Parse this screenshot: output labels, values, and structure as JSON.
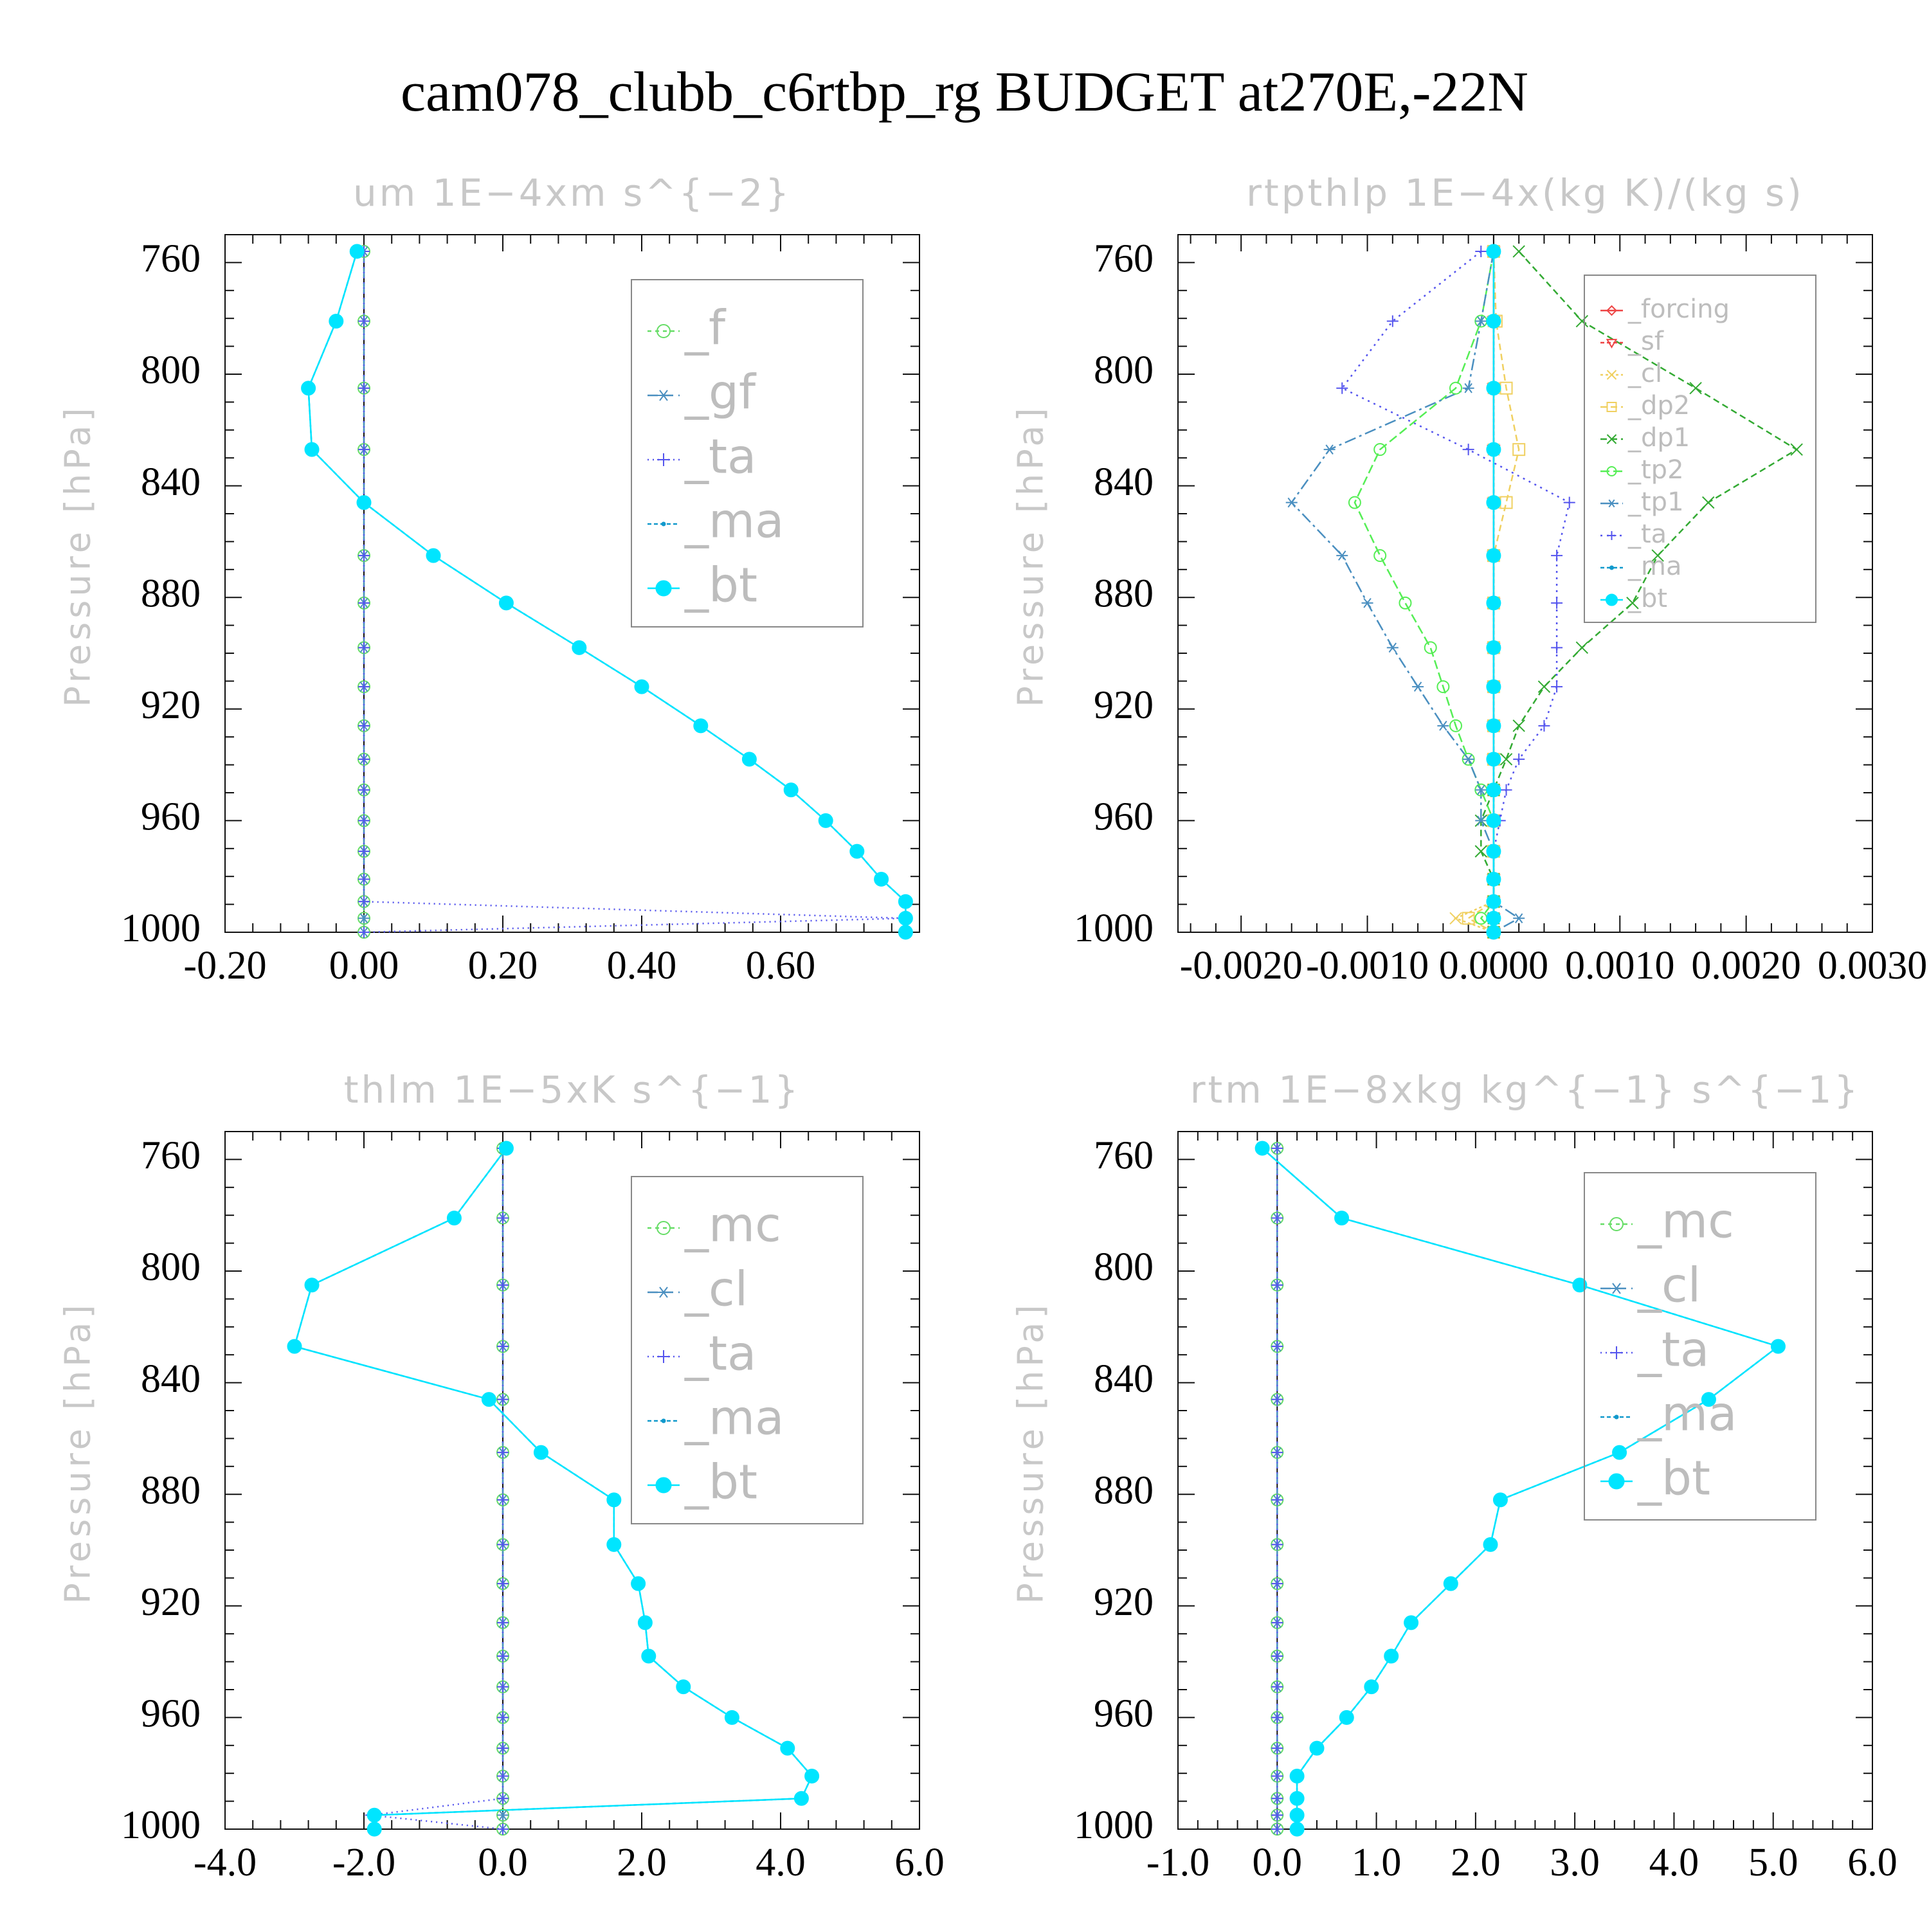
{
  "title": "cam078_clubb_c6rtbp_rg  BUDGET at270E,-22N",
  "chart_data": [
    {
      "type": "line",
      "title": "um   1E−4xm s^{−2}",
      "ylabel": "Pressure [hPa]",
      "xlim": [
        -0.2,
        0.8
      ],
      "xticks": [
        -0.2,
        0.0,
        0.2,
        0.4,
        0.6
      ],
      "xticklabels": [
        "-0.20",
        "0.00",
        "0.20",
        "0.40",
        "0.60"
      ],
      "ylim": [
        750,
        1000
      ],
      "yticks": [
        760,
        800,
        840,
        880,
        920,
        960,
        1000
      ],
      "yticklabels": [
        "760",
        "800",
        "840",
        "880",
        "920",
        "960",
        "1000"
      ],
      "legend_position": "top-right",
      "legend_font": 74,
      "pressure": [
        756,
        781,
        805,
        827,
        846,
        865,
        882,
        898,
        912,
        926,
        938,
        949,
        960,
        971,
        981,
        989,
        995,
        1000
      ],
      "series": [
        {
          "name": "_f",
          "color": "#66dd66",
          "marker": "circle",
          "dash": "6,6",
          "values": [
            0,
            0,
            0,
            0,
            0,
            0,
            0,
            0,
            0,
            0,
            0,
            0,
            0,
            0,
            0,
            0,
            0,
            0
          ]
        },
        {
          "name": "_gf",
          "color": "#4a8fc0",
          "marker": "asterisk",
          "dash": "16,8",
          "values": [
            0,
            0,
            0,
            0,
            0,
            0,
            0,
            0,
            0,
            0,
            0,
            0,
            0,
            0,
            0,
            0,
            0,
            0
          ]
        },
        {
          "name": "_ta",
          "color": "#5555ee",
          "marker": "plus",
          "dash": "2,6",
          "values": [
            0,
            0,
            0,
            0,
            0,
            0,
            0,
            0,
            0,
            0,
            0,
            0,
            0,
            0,
            0,
            0,
            0.78,
            0
          ]
        },
        {
          "name": "_ma",
          "color": "#1199cc",
          "marker": "dot",
          "dash": "6,4",
          "values": [
            -0.01,
            -0.04,
            -0.08,
            -0.075,
            0.0,
            0.1,
            0.205,
            0.31,
            0.4,
            0.485,
            0.555,
            0.615,
            0.665,
            0.71,
            0.745,
            0.78,
            0.78,
            0.78
          ]
        },
        {
          "name": "_bt",
          "color": "#00e5ff",
          "marker": "filled",
          "dash": "none",
          "values": [
            -0.01,
            -0.04,
            -0.08,
            -0.075,
            0.0,
            0.1,
            0.205,
            0.31,
            0.4,
            0.485,
            0.555,
            0.615,
            0.665,
            0.71,
            0.745,
            0.78,
            0.78,
            0.78
          ]
        }
      ]
    },
    {
      "type": "line",
      "title": "rtpthlp   1E−4x(kg K)/(kg s)",
      "ylabel": "Pressure [hPa]",
      "xlim": [
        -0.0025,
        0.003
      ],
      "xticks": [
        -0.002,
        -0.001,
        0.0,
        0.001,
        0.002,
        0.003
      ],
      "xticklabels": [
        "-0.0020",
        "-0.0010",
        "0.0000",
        "0.0010",
        "0.0020",
        "0.0030"
      ],
      "ylim": [
        750,
        1000
      ],
      "yticks": [
        760,
        800,
        840,
        880,
        920,
        960,
        1000
      ],
      "yticklabels": [
        "760",
        "800",
        "840",
        "880",
        "920",
        "960",
        "1000"
      ],
      "legend_position": "top-right",
      "legend_font": 40,
      "pressure": [
        756,
        781,
        805,
        827,
        846,
        865,
        882,
        898,
        912,
        926,
        938,
        949,
        960,
        971,
        981,
        989,
        995,
        1000
      ],
      "series": [
        {
          "name": "_forcing",
          "color": "#ee4444",
          "marker": "diamond",
          "dash": "none",
          "values": [
            0,
            0,
            0,
            0,
            0,
            0,
            0,
            0,
            0,
            0,
            0,
            0,
            0,
            0,
            0,
            0,
            0,
            0
          ]
        },
        {
          "name": "_sf",
          "color": "#ee4444",
          "marker": "triangle",
          "dash": "6,4",
          "values": [
            0,
            0,
            0,
            0,
            0,
            0,
            0,
            0,
            0,
            0,
            0,
            0,
            0,
            0,
            0,
            0,
            0,
            0
          ]
        },
        {
          "name": "_cl",
          "color": "#f0d060",
          "marker": "x",
          "dash": "4,4",
          "values": [
            0,
            0,
            0,
            0,
            0,
            0,
            0,
            0,
            0,
            0,
            0,
            0,
            0,
            0,
            0,
            0,
            -0.0003,
            0
          ]
        },
        {
          "name": "_dp2",
          "color": "#f0d060",
          "marker": "square",
          "dash": "10,6",
          "values": [
            0,
            2e-05,
            0.0001,
            0.0002,
            0.0001,
            0,
            0,
            0,
            0,
            0,
            0,
            0,
            0,
            0,
            0,
            0,
            -0.0002,
            0
          ]
        },
        {
          "name": "_dp1",
          "color": "#33aa33",
          "marker": "x",
          "dash": "10,6",
          "values": [
            0.0002,
            0.0007,
            0.0016,
            0.0024,
            0.0017,
            0.0013,
            0.0011,
            0.0007,
            0.0004,
            0.0002,
            0.0001,
            0,
            -0.0001,
            -0.0001,
            0,
            0,
            0,
            0
          ]
        },
        {
          "name": "_tp2",
          "color": "#55ee55",
          "marker": "circle",
          "dash": "14,6",
          "values": [
            0,
            -0.0001,
            -0.0003,
            -0.0009,
            -0.0011,
            -0.0009,
            -0.0007,
            -0.0005,
            -0.0004,
            -0.0003,
            -0.0002,
            -0.0001,
            0,
            0,
            0,
            0,
            -0.0001,
            0
          ]
        },
        {
          "name": "_tp1",
          "color": "#4a8fc0",
          "marker": "asterisk",
          "dash": "18,6,4,6",
          "values": [
            0,
            -0.0001,
            -0.0002,
            -0.0013,
            -0.0016,
            -0.0012,
            -0.001,
            -0.0008,
            -0.0006,
            -0.0004,
            -0.0002,
            -0.0001,
            -0.0001,
            0,
            0,
            0,
            0.0002,
            0
          ]
        },
        {
          "name": "_ta",
          "color": "#5555ee",
          "marker": "plus",
          "dash": "3,7",
          "values": [
            -0.0001,
            -0.0008,
            -0.0012,
            -0.0002,
            0.0006,
            0.0005,
            0.0005,
            0.0005,
            0.0005,
            0.0004,
            0.0002,
            0.0001,
            5e-05,
            0,
            0,
            0,
            0,
            0
          ]
        },
        {
          "name": "_ma",
          "color": "#1199cc",
          "marker": "dot",
          "dash": "6,4",
          "values": [
            0,
            0,
            0,
            0,
            0,
            0,
            0,
            0,
            0,
            0,
            0,
            0,
            0,
            0,
            0,
            0,
            0,
            0
          ]
        },
        {
          "name": "_bt",
          "color": "#00e5ff",
          "marker": "filled",
          "dash": "none",
          "values": [
            0,
            0,
            0,
            0,
            0,
            0,
            0,
            0,
            0,
            0,
            0,
            0,
            0,
            0,
            0,
            0,
            0,
            0
          ]
        }
      ]
    },
    {
      "type": "line",
      "title": "thlm   1E−5xK s^{−1}",
      "ylabel": "Pressure [hPa]",
      "xlim": [
        -4.0,
        6.0
      ],
      "xticks": [
        -4,
        -2,
        0,
        2,
        4,
        6
      ],
      "xticklabels": [
        "-4.0",
        "-2.0",
        "0.0",
        "2.0",
        "4.0",
        "6.0"
      ],
      "ylim": [
        750,
        1000
      ],
      "yticks": [
        760,
        800,
        840,
        880,
        920,
        960,
        1000
      ],
      "yticklabels": [
        "760",
        "800",
        "840",
        "880",
        "920",
        "960",
        "1000"
      ],
      "legend_position": "top-right",
      "legend_font": 74,
      "pressure": [
        756,
        781,
        805,
        827,
        846,
        865,
        882,
        898,
        912,
        926,
        938,
        949,
        960,
        971,
        981,
        989,
        995,
        1000
      ],
      "series": [
        {
          "name": "_mc",
          "color": "#66dd66",
          "marker": "circle",
          "dash": "6,6",
          "values": [
            0,
            0,
            0,
            0,
            0,
            0,
            0,
            0,
            0,
            0,
            0,
            0,
            0,
            0,
            0,
            0,
            0,
            0
          ]
        },
        {
          "name": "_cl",
          "color": "#4a8fc0",
          "marker": "asterisk",
          "dash": "16,8",
          "values": [
            0,
            0,
            0,
            0,
            0,
            0,
            0,
            0,
            0,
            0,
            0,
            0,
            0,
            0,
            0,
            0,
            0,
            0
          ]
        },
        {
          "name": "_ta",
          "color": "#5555ee",
          "marker": "plus",
          "dash": "2,6",
          "values": [
            0,
            0,
            0,
            0,
            0,
            0,
            0,
            0,
            0,
            0,
            0,
            0,
            0,
            0,
            0,
            0,
            -1.9,
            0
          ]
        },
        {
          "name": "_ma",
          "color": "#1199cc",
          "marker": "dot",
          "dash": "6,4",
          "values": [
            0.05,
            -0.7,
            -2.75,
            -3.0,
            -0.2,
            0.55,
            1.6,
            1.6,
            1.95,
            2.05,
            2.1,
            2.6,
            3.3,
            4.1,
            4.45,
            4.3,
            -1.85,
            -1.85
          ]
        },
        {
          "name": "_bt",
          "color": "#00e5ff",
          "marker": "filled",
          "dash": "none",
          "values": [
            0.05,
            -0.7,
            -2.75,
            -3.0,
            -0.2,
            0.55,
            1.6,
            1.6,
            1.95,
            2.05,
            2.1,
            2.6,
            3.3,
            4.1,
            4.45,
            4.3,
            -1.85,
            -1.85
          ]
        }
      ]
    },
    {
      "type": "line",
      "title": "rtm   1E−8xkg kg^{−1} s^{−1}",
      "ylabel": "Pressure [hPa]",
      "xlim": [
        -1.0,
        6.0
      ],
      "xticks": [
        -1,
        0,
        1,
        2,
        3,
        4,
        5,
        6
      ],
      "xticklabels": [
        "-1.0",
        "0.0",
        "1.0",
        "2.0",
        "3.0",
        "4.0",
        "5.0",
        "6.0"
      ],
      "ylim": [
        750,
        1000
      ],
      "yticks": [
        760,
        800,
        840,
        880,
        920,
        960,
        1000
      ],
      "yticklabels": [
        "760",
        "800",
        "840",
        "880",
        "920",
        "960",
        "1000"
      ],
      "legend_position": "top-right",
      "legend_font": 74,
      "pressure": [
        756,
        781,
        805,
        827,
        846,
        865,
        882,
        898,
        912,
        926,
        938,
        949,
        960,
        971,
        981,
        989,
        995,
        1000
      ],
      "series": [
        {
          "name": "_mc",
          "color": "#66dd66",
          "marker": "circle",
          "dash": "6,6",
          "values": [
            0,
            0,
            0,
            0,
            0,
            0,
            0,
            0,
            0,
            0,
            0,
            0,
            0,
            0,
            0,
            0,
            0,
            0
          ]
        },
        {
          "name": "_cl",
          "color": "#4a8fc0",
          "marker": "asterisk",
          "dash": "16,8",
          "values": [
            0,
            0,
            0,
            0,
            0,
            0,
            0,
            0,
            0,
            0,
            0,
            0,
            0,
            0,
            0,
            0,
            0,
            0
          ]
        },
        {
          "name": "_ta",
          "color": "#5555ee",
          "marker": "plus",
          "dash": "2,6",
          "values": [
            0,
            0,
            0,
            0,
            0,
            0,
            0,
            0,
            0,
            0,
            0,
            0,
            0,
            0,
            0,
            0,
            0,
            0
          ]
        },
        {
          "name": "_ma",
          "color": "#1199cc",
          "marker": "dot",
          "dash": "6,4",
          "values": [
            -0.15,
            0.65,
            3.05,
            5.05,
            4.35,
            3.45,
            2.25,
            2.15,
            1.75,
            1.35,
            1.15,
            0.95,
            0.7,
            0.4,
            0.2,
            0.2,
            0.2,
            0.2
          ]
        },
        {
          "name": "_bt",
          "color": "#00e5ff",
          "marker": "filled",
          "dash": "none",
          "values": [
            -0.15,
            0.65,
            3.05,
            5.05,
            4.35,
            3.45,
            2.25,
            2.15,
            1.75,
            1.35,
            1.15,
            0.95,
            0.7,
            0.4,
            0.2,
            0.2,
            0.2,
            0.2
          ]
        }
      ]
    }
  ]
}
